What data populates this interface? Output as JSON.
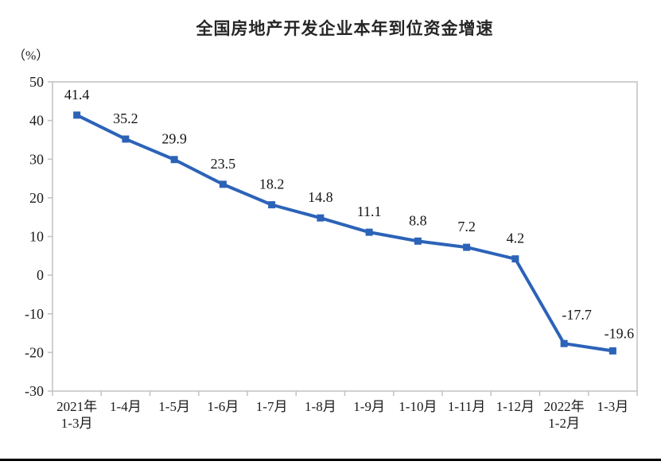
{
  "chart_data": {
    "type": "line",
    "title": "全国房地产开发企业本年到位资金增速",
    "unit_label": "（%）",
    "categories": [
      "2021年\n1-3月",
      "1-4月",
      "1-5月",
      "1-6月",
      "1-7月",
      "1-8月",
      "1-9月",
      "1-10月",
      "1-11月",
      "1-12月",
      "2022年\n1-2月",
      "1-3月"
    ],
    "values": [
      41.4,
      35.2,
      29.9,
      23.5,
      18.2,
      14.8,
      11.1,
      8.8,
      7.2,
      4.2,
      -17.7,
      -19.6
    ],
    "yticks": [
      50,
      40,
      30,
      20,
      10,
      0,
      -10,
      -20,
      -30
    ],
    "ylim": [
      -30,
      50
    ],
    "ylabel": "（%）",
    "xlabel": "",
    "grid": false,
    "legend": false,
    "marker_shape": "square",
    "line_color": "#2c63b8",
    "axis_color": "#c4c4c4",
    "label_color": "#141414",
    "title_color": "#262626",
    "label_offsets": {
      "10": {
        "dx": 16,
        "dy": -30
      },
      "11": {
        "dx": 8,
        "dy": -16
      }
    }
  }
}
